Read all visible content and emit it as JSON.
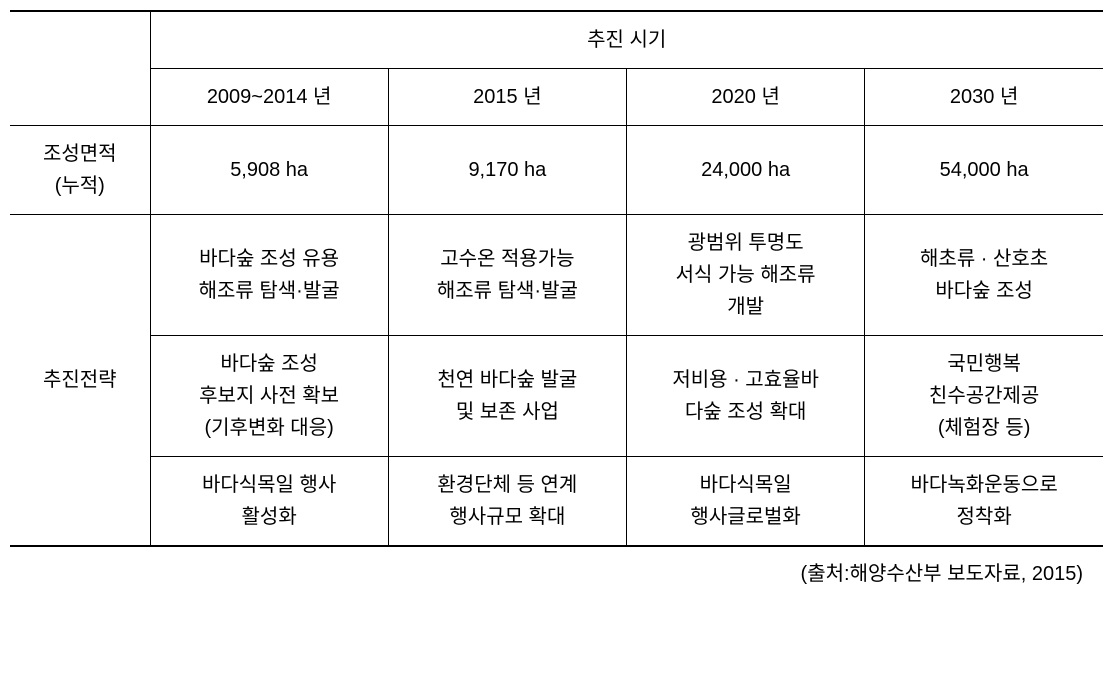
{
  "table": {
    "background_color": "#ffffff",
    "text_color": "#000000",
    "border_color": "#000000",
    "font_size": 20,
    "header_group": "추진 시기",
    "periods": [
      "2009~2014 년",
      "2015 년",
      "2020 년",
      "2030 년"
    ],
    "row_labels": {
      "area": "조성면적\n(누적)",
      "strategy": "추진전략"
    },
    "area_row": [
      "5,908 ha",
      "9,170 ha",
      "24,000 ha",
      "54,000 ha"
    ],
    "strategy_rows": [
      [
        "바다숲 조성 유용\n해조류 탐색·발굴",
        "고수온 적용가능\n해조류 탐색·발굴",
        "광범위 투명도\n서식 가능 해조류\n개발",
        "해초류 · 산호초\n바다숲 조성"
      ],
      [
        "바다숲 조성\n후보지 사전 확보\n(기후변화 대응)",
        "천연 바다숲 발굴\n및 보존 사업",
        "저비용 · 고효율바\n다숲 조성 확대",
        "국민행복\n친수공간제공\n(체험장 등)"
      ],
      [
        "바다식목일 행사\n활성화",
        "환경단체 등 연계\n행사규모 확대",
        "바다식목일\n행사글로벌화",
        "바다녹화운동으로\n정착화"
      ]
    ]
  },
  "source": "(출처:해양수산부 보도자료, 2015)"
}
